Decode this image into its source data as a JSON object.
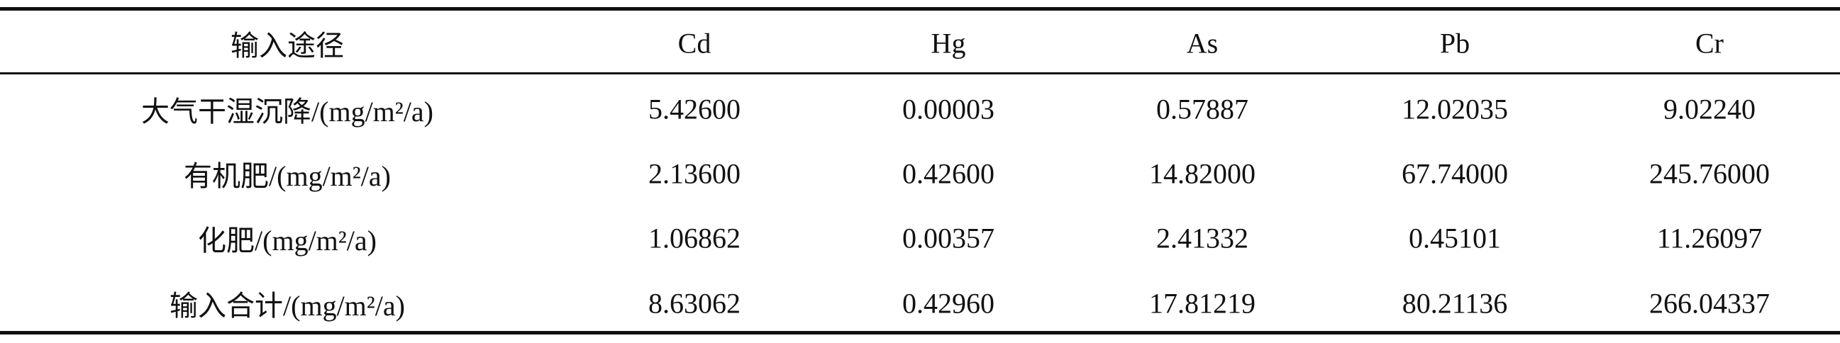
{
  "table": {
    "header": [
      "输入途径",
      "Cd",
      "Hg",
      "As",
      "Pb",
      "Cr"
    ],
    "rows": [
      [
        "大气干湿沉降/(mg/m²/a)",
        "5.42600",
        "0.00003",
        "0.57887",
        "12.02035",
        "9.02240"
      ],
      [
        "有机肥/(mg/m²/a)",
        "2.13600",
        "0.42600",
        "14.82000",
        "67.74000",
        "245.76000"
      ],
      [
        "化肥/(mg/m²/a)",
        "1.06862",
        "0.00357",
        "2.41332",
        "0.45101",
        "11.26097"
      ],
      [
        "输入合计/(mg/m²/a)",
        "8.63062",
        "0.42960",
        "17.81219",
        "80.21136",
        "266.04337"
      ]
    ]
  }
}
